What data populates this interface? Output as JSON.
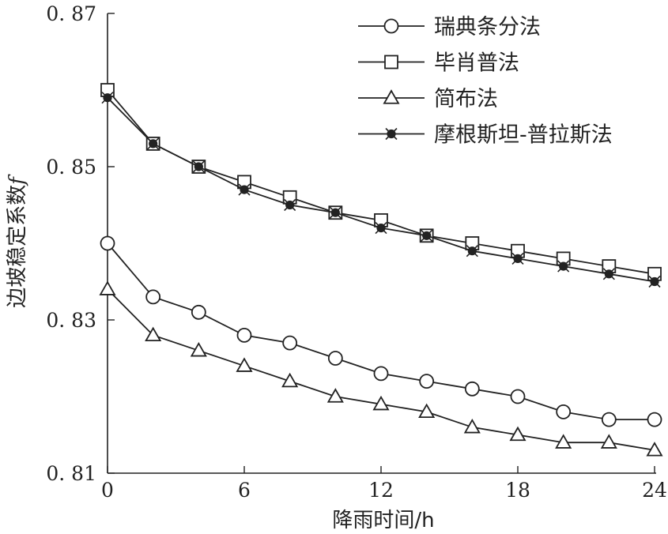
{
  "chart_data": {
    "type": "line",
    "xlabel": "降雨时间/h",
    "ylabel": "边坡稳定系数",
    "ylabel_symbol": "f",
    "xlim": [
      0,
      24
    ],
    "ylim": [
      0.81,
      0.87
    ],
    "x_ticks": [
      0,
      6,
      12,
      18,
      24
    ],
    "y_ticks": [
      0.81,
      0.83,
      0.85,
      0.87
    ],
    "y_tick_labels": [
      "0. 81",
      "0. 83",
      "0. 85",
      "0. 87"
    ],
    "grid": false,
    "legend_position": "top-right",
    "x": [
      0,
      2,
      4,
      6,
      8,
      10,
      12,
      14,
      16,
      18,
      20,
      22,
      24
    ],
    "series": [
      {
        "name": "瑞典条分法",
        "marker": "circle",
        "values": [
          0.84,
          0.833,
          0.831,
          0.828,
          0.827,
          0.825,
          0.823,
          0.822,
          0.821,
          0.82,
          0.818,
          0.817,
          0.817
        ]
      },
      {
        "name": "毕肖普法",
        "marker": "square",
        "values": [
          0.86,
          0.853,
          0.85,
          0.848,
          0.846,
          0.844,
          0.843,
          0.841,
          0.84,
          0.839,
          0.838,
          0.837,
          0.836
        ]
      },
      {
        "name": "简布法",
        "marker": "triangle",
        "values": [
          0.834,
          0.828,
          0.826,
          0.824,
          0.822,
          0.82,
          0.819,
          0.818,
          0.816,
          0.815,
          0.814,
          0.814,
          0.813
        ]
      },
      {
        "name": "摩根斯坦-普拉斯法",
        "marker": "star-dot",
        "values": [
          0.859,
          0.853,
          0.85,
          0.847,
          0.845,
          0.844,
          0.842,
          0.841,
          0.839,
          0.838,
          0.837,
          0.836,
          0.835
        ]
      }
    ]
  }
}
